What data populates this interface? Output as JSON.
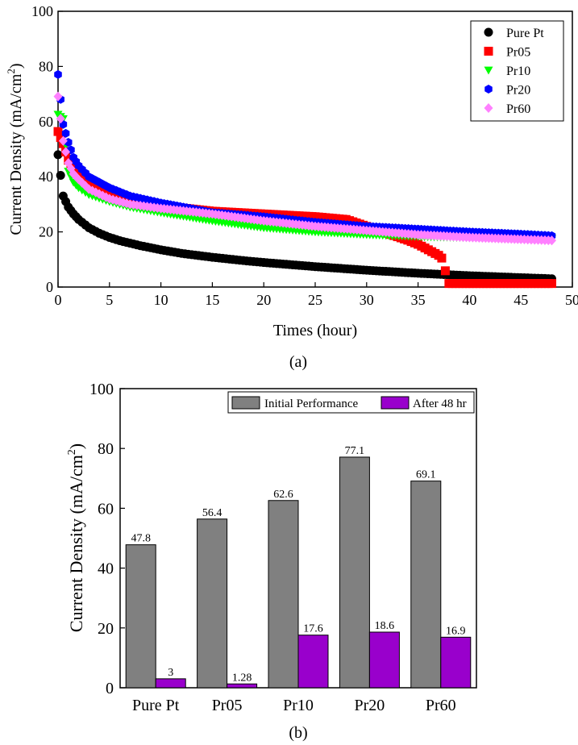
{
  "chart_data": [
    {
      "panel": "(a)",
      "type": "scatter",
      "xlabel": "Times (hour)",
      "ylabel": "Current Density (mA/cm",
      "ylabel_sup": "2",
      "ylabel_close": ")",
      "xlim": [
        0,
        50
      ],
      "ylim": [
        0,
        100
      ],
      "xticks": [
        0,
        5,
        10,
        15,
        20,
        25,
        30,
        35,
        40,
        45,
        50
      ],
      "yticks": [
        0,
        20,
        40,
        60,
        80,
        100
      ],
      "grid": false,
      "legend": "top-right",
      "series": [
        {
          "name": "Pure Pt",
          "marker": "circle",
          "color": "#000000",
          "x": [
            0,
            0.5,
            1,
            1.5,
            2,
            3,
            4,
            5,
            6,
            8,
            10,
            12,
            15,
            18,
            20,
            25,
            30,
            35,
            40,
            45,
            48
          ],
          "y": [
            48,
            33,
            29,
            26.5,
            24.5,
            21.5,
            19.5,
            18,
            16.8,
            15,
            13.5,
            12.2,
            10.8,
            9.6,
            8.9,
            7.4,
            6.1,
            5,
            4.1,
            3.4,
            3
          ]
        },
        {
          "name": "Pr05",
          "marker": "square",
          "color": "#ff0000",
          "x": [
            0,
            0.5,
            1,
            1.5,
            2,
            3,
            5,
            7,
            10,
            15,
            20,
            25,
            28,
            30,
            32,
            34,
            35,
            36,
            37,
            37.3,
            38,
            40,
            42,
            44,
            46,
            48
          ],
          "y": [
            56.4,
            52,
            46,
            43,
            41,
            38,
            35,
            32,
            29.5,
            27.5,
            26.5,
            25.5,
            24.5,
            22,
            19.5,
            17,
            15.5,
            13.5,
            11.5,
            10.5,
            1.28,
            1.28,
            1.28,
            1.28,
            1.28,
            1.28
          ]
        },
        {
          "name": "Pr10",
          "marker": "triangle-down",
          "color": "#00ff00",
          "x": [
            0,
            0.5,
            1,
            1.5,
            2,
            3,
            5,
            7,
            10,
            15,
            20,
            25,
            30,
            35,
            40,
            45,
            48
          ],
          "y": [
            62.6,
            61,
            42,
            38,
            36,
            33.5,
            31,
            29,
            27,
            24,
            21.5,
            20,
            19,
            18.3,
            17.9,
            17.7,
            17.6
          ]
        },
        {
          "name": "Pr20",
          "marker": "hexagon",
          "color": "#0000ff",
          "x": [
            0,
            0.5,
            1,
            1.5,
            2,
            3,
            5,
            7,
            10,
            15,
            20,
            25,
            30,
            35,
            40,
            45,
            48
          ],
          "y": [
            77.1,
            59,
            52.5,
            47,
            44,
            40,
            36,
            33,
            30.5,
            27,
            25.5,
            23.5,
            22,
            21,
            20,
            19.2,
            18.6
          ]
        },
        {
          "name": "Pr60",
          "marker": "diamond",
          "color": "#ff80ff",
          "x": [
            0,
            0.5,
            1,
            1.5,
            2,
            3,
            5,
            7,
            10,
            15,
            20,
            25,
            30,
            35,
            40,
            45,
            48
          ],
          "y": [
            69.1,
            53,
            45,
            41,
            39,
            35.5,
            32,
            30,
            28.5,
            26.5,
            24,
            22,
            20.5,
            19,
            18,
            17.3,
            16.9
          ]
        }
      ]
    },
    {
      "panel": "(b)",
      "type": "bar",
      "ylabel": "Current Density (mA/cm",
      "ylabel_sup": "2",
      "ylabel_close": ")",
      "ylim": [
        0,
        100
      ],
      "yticks": [
        0,
        20,
        40,
        60,
        80,
        100
      ],
      "categories": [
        "Pure Pt",
        "Pr05",
        "Pr10",
        "Pr20",
        "Pr60"
      ],
      "grid": false,
      "legend": "top-right",
      "series": [
        {
          "name": "Initial Performance",
          "color": "#808080",
          "values": [
            47.8,
            56.4,
            62.6,
            77.1,
            69.1
          ],
          "labels": [
            "47.8",
            "56.4",
            "62.6",
            "77.1",
            "69.1"
          ]
        },
        {
          "name": "After 48 hr",
          "color": "#9900cc",
          "values": [
            3,
            1.28,
            17.6,
            18.6,
            16.9
          ],
          "labels": [
            "3",
            "1.28",
            "17.6",
            "18.6",
            "16.9"
          ]
        }
      ]
    }
  ]
}
